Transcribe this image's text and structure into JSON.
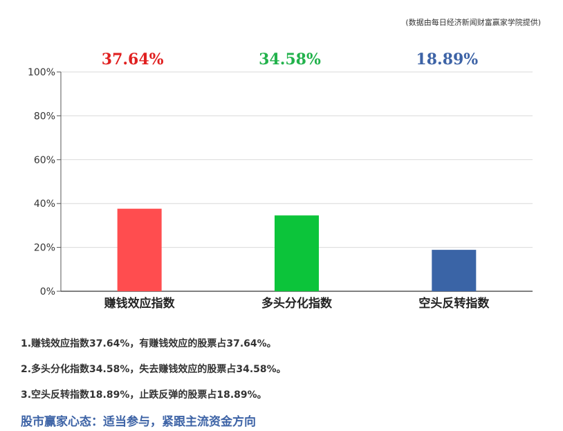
{
  "source_note": "(数据由每日经济新闻财富赢家学院提供)",
  "chart_data": {
    "type": "bar",
    "categories": [
      "赚钱效应指数",
      "多头分化指数",
      "空头反转指数"
    ],
    "values": [
      37.64,
      34.58,
      18.89
    ],
    "value_labels": [
      "37.64%",
      "34.58%",
      "18.89%"
    ],
    "value_label_colors": [
      "#e02020",
      "#22b24c",
      "#3d63a6"
    ],
    "bar_colors": [
      "#ff4d4f",
      "#0cc43a",
      "#3a64a6"
    ],
    "ylim": [
      0,
      100
    ],
    "yticks": [
      0,
      20,
      40,
      60,
      80,
      100
    ],
    "ytick_labels": [
      "0%",
      "20%",
      "40%",
      "60%",
      "80%",
      "100%"
    ],
    "grid": true,
    "title": "",
    "xlabel": "",
    "ylabel": ""
  },
  "notes": [
    "1.赚钱效应指数37.64%，有赚钱效应的股票占37.64%。",
    "2.多头分化指数34.58%，失去赚钱效应的股票占34.58%。",
    "3.空头反转指数18.89%，止跌反弹的股票占18.89%。"
  ],
  "mindset": "股市赢家心态：适当参与，紧跟主流资金方向",
  "colors": {
    "mindset": "#3d63a6",
    "grid": "#d9d9d9",
    "axis": "#555555"
  }
}
